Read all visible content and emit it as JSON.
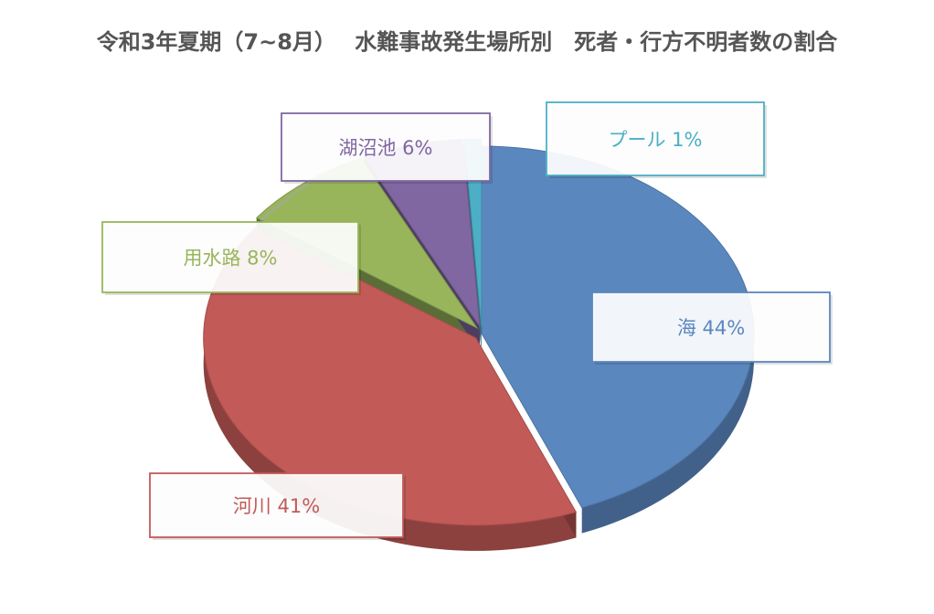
{
  "chart_data": {
    "type": "pie",
    "title": "令和3年夏期（7~8月）　 水難事故発生場所別　死者・行方不明者数の割合",
    "slices": [
      {
        "name": "海",
        "value": 44,
        "label": "海 44%",
        "color": "#5B87BF"
      },
      {
        "name": "河川",
        "value": 41,
        "label": "河川 41%",
        "color": "#C25A57"
      },
      {
        "name": "用水路",
        "value": 8,
        "label": "用水路 8%",
        "color": "#98B55B"
      },
      {
        "name": "湖沼池",
        "value": 6,
        "label": "湖沼池 6%",
        "color": "#8067A2"
      },
      {
        "name": "プール",
        "value": 1,
        "label": "プール 1%",
        "color": "#4CAFC6"
      }
    ],
    "legend": "none",
    "style": "3d-exploded"
  }
}
